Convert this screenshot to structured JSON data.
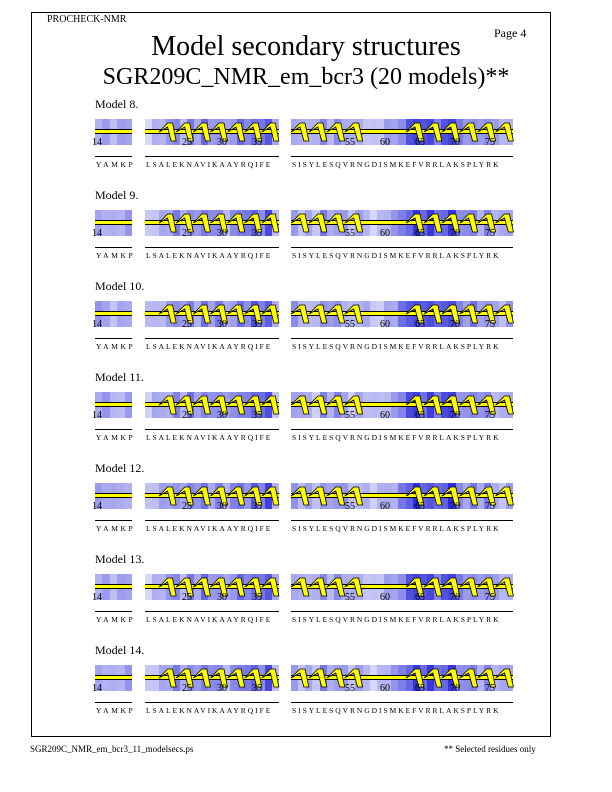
{
  "header": {
    "program": "PROCHECK-NMR",
    "page": "Page  4",
    "title": "Model secondary structures",
    "subtitle": "SGR209C_NMR_em_bcr3 (20 models)**"
  },
  "segments": [
    {
      "sequence": "YAMKP",
      "start_label": "14"
    },
    {
      "sequence": "LSALEKNAVIKAAYRQIFE",
      "ticks": [
        "25",
        "30",
        "35"
      ]
    },
    {
      "sequence": "SISYLESQVRNGDISMKEFVRRLAKSPLYRK",
      "ticks": [
        "55",
        "60",
        "65",
        "70",
        "75"
      ]
    }
  ],
  "models": [
    {
      "label": "Model  8."
    },
    {
      "label": "Model  9."
    },
    {
      "label": "Model 10."
    },
    {
      "label": "Model 11."
    },
    {
      "label": "Model 12."
    },
    {
      "label": "Model 13."
    },
    {
      "label": "Model 14."
    }
  ],
  "colors": {
    "helix": "#ffff00",
    "shade_dark": "#2a2ad8",
    "shade_light": "#e4e4fb"
  },
  "footer": {
    "left": "SGR209C_NMR_em_bcr3_11_modelsecs.ps",
    "right": "** Selected residues only"
  }
}
